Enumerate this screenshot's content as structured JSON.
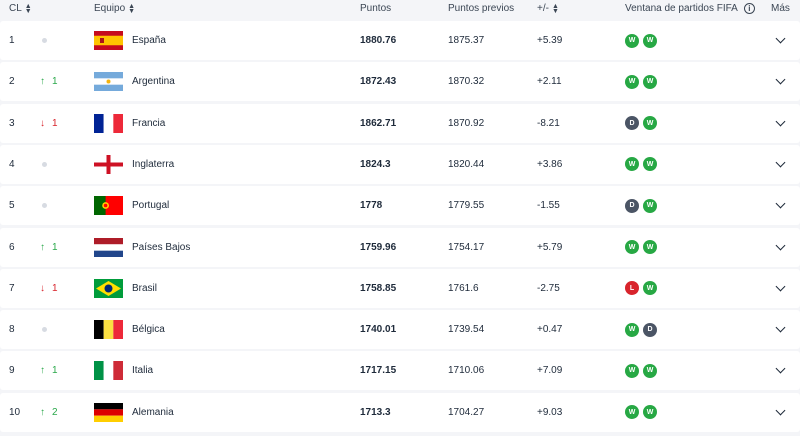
{
  "header": {
    "rank": "CL",
    "team": "Equipo",
    "points": "Puntos",
    "previous": "Puntos previos",
    "diff": "+/-",
    "window": "Ventana de partidos FIFA",
    "more": "Más"
  },
  "colors": {
    "win": "#27a844",
    "draw": "#4b5565",
    "loss": "#d8242c",
    "up": "#2aa84a",
    "down": "#d8242c"
  },
  "rows": [
    {
      "rank": "1",
      "move": "none",
      "move_value": "",
      "team": "España",
      "flag": "spain-flag",
      "points": "1880.76",
      "previous": "1875.37",
      "diff": "+5.39",
      "results": [
        "W",
        "W"
      ]
    },
    {
      "rank": "2",
      "move": "up",
      "move_value": "1",
      "team": "Argentina",
      "flag": "argentina-flag",
      "points": "1872.43",
      "previous": "1870.32",
      "diff": "+2.11",
      "results": [
        "W",
        "W"
      ]
    },
    {
      "rank": "3",
      "move": "down",
      "move_value": "1",
      "team": "Francia",
      "flag": "france-flag",
      "points": "1862.71",
      "previous": "1870.92",
      "diff": "-8.21",
      "results": [
        "D",
        "W"
      ]
    },
    {
      "rank": "4",
      "move": "none",
      "move_value": "",
      "team": "Inglaterra",
      "flag": "england-flag",
      "points": "1824.3",
      "previous": "1820.44",
      "diff": "+3.86",
      "results": [
        "W",
        "W"
      ]
    },
    {
      "rank": "5",
      "move": "none",
      "move_value": "",
      "team": "Portugal",
      "flag": "portugal-flag",
      "points": "1778",
      "previous": "1779.55",
      "diff": "-1.55",
      "results": [
        "D",
        "W"
      ]
    },
    {
      "rank": "6",
      "move": "up",
      "move_value": "1",
      "team": "Países Bajos",
      "flag": "netherlands-flag",
      "points": "1759.96",
      "previous": "1754.17",
      "diff": "+5.79",
      "results": [
        "W",
        "W"
      ]
    },
    {
      "rank": "7",
      "move": "down",
      "move_value": "1",
      "team": "Brasil",
      "flag": "brazil-flag",
      "points": "1758.85",
      "previous": "1761.6",
      "diff": "-2.75",
      "results": [
        "L",
        "W"
      ]
    },
    {
      "rank": "8",
      "move": "none",
      "move_value": "",
      "team": "Bélgica",
      "flag": "belgium-flag",
      "points": "1740.01",
      "previous": "1739.54",
      "diff": "+0.47",
      "results": [
        "W",
        "D"
      ]
    },
    {
      "rank": "9",
      "move": "up",
      "move_value": "1",
      "team": "Italia",
      "flag": "italy-flag",
      "points": "1717.15",
      "previous": "1710.06",
      "diff": "+7.09",
      "results": [
        "W",
        "W"
      ]
    },
    {
      "rank": "10",
      "move": "up",
      "move_value": "2",
      "team": "Alemania",
      "flag": "germany-flag",
      "points": "1713.3",
      "previous": "1704.27",
      "diff": "+9.03",
      "results": [
        "W",
        "W"
      ]
    }
  ]
}
